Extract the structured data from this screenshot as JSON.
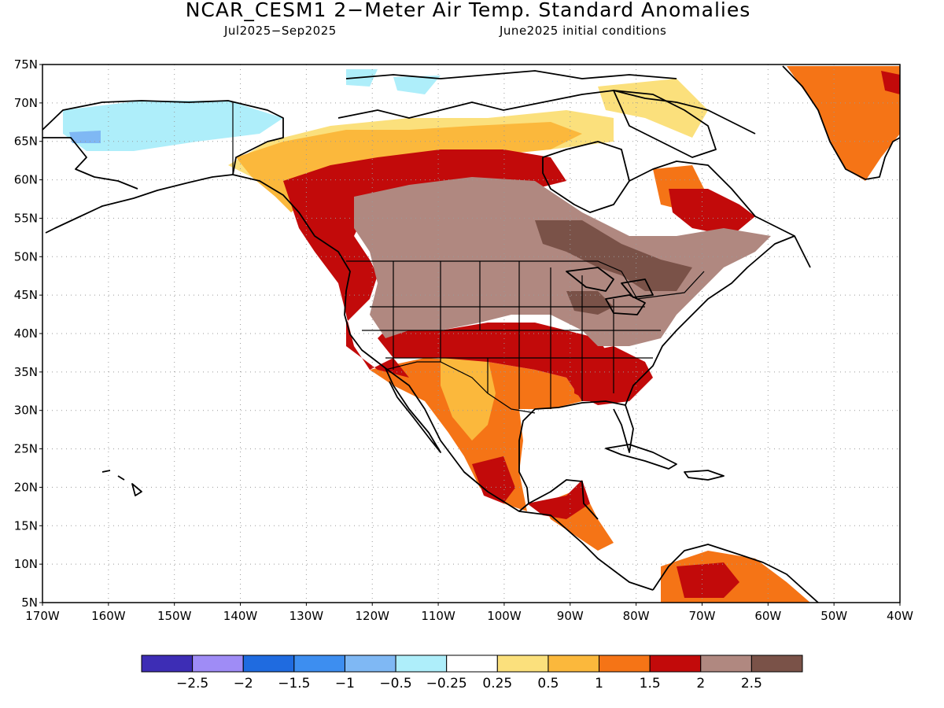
{
  "title": "NCAR_CESM1 2−Meter Air Temp. Standard Anomalies",
  "subtitle_left": "Jul2025−Sep2025",
  "subtitle_right": "June2025 initial conditions",
  "lat_labels": [
    "75N",
    "70N",
    "65N",
    "60N",
    "55N",
    "50N",
    "45N",
    "40N",
    "35N",
    "30N",
    "25N",
    "20N",
    "15N",
    "10N",
    "5N"
  ],
  "lon_labels": [
    "170W",
    "160W",
    "150W",
    "140W",
    "130W",
    "120W",
    "110W",
    "100W",
    "90W",
    "80W",
    "70W",
    "60W",
    "50W",
    "40W"
  ],
  "colorbar": {
    "colors": [
      "#3d2db5",
      "#9f8cf6",
      "#1f6be0",
      "#3d8ef0",
      "#7fb8f4",
      "#aeeefa",
      "#ffffff",
      "#fbe07c",
      "#fbb83c",
      "#f57416",
      "#c20a0a",
      "#b08880",
      "#7a5248"
    ],
    "labels": [
      "−2.5",
      "−2",
      "−1.5",
      "−1",
      "−0.5",
      "−0.25",
      "0.25",
      "0.5",
      "1",
      "1.5",
      "2",
      "2.5"
    ]
  },
  "colors": {
    "land_outline": "#000000",
    "grid": "#999999",
    "frame": "#000000"
  }
}
